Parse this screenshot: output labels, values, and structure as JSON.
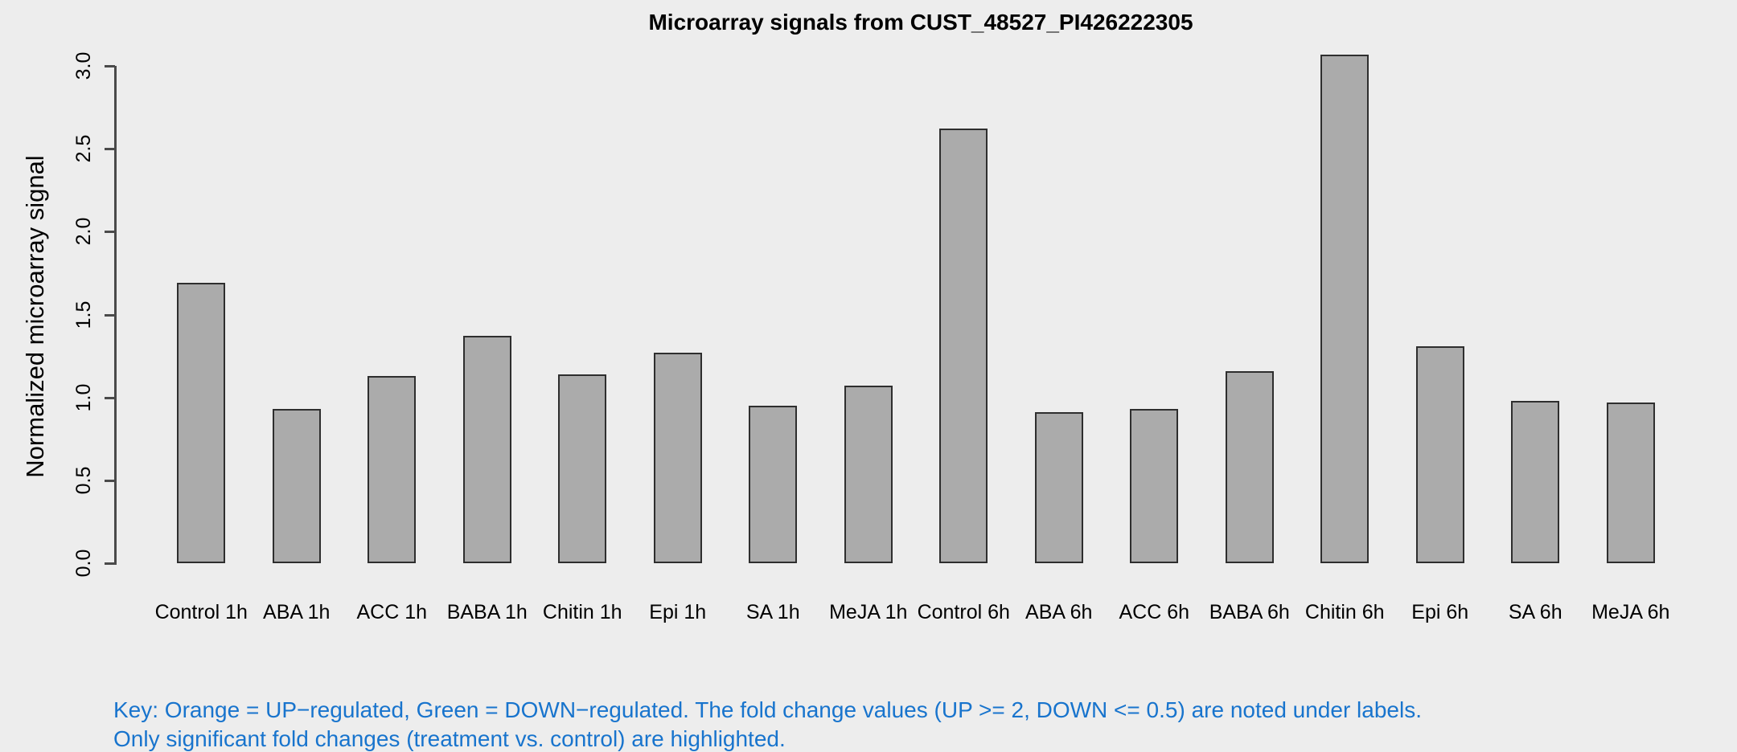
{
  "chart_data": {
    "type": "bar",
    "title": "Microarray signals from CUST_48527_PI426222305",
    "xlabel": "",
    "ylabel": "Normalized microarray signal",
    "ylim": [
      0,
      3.0
    ],
    "yticks": [
      "0.0",
      "0.5",
      "1.0",
      "1.5",
      "2.0",
      "2.5",
      "3.0"
    ],
    "categories": [
      "Control 1h",
      "ABA 1h",
      "ACC 1h",
      "BABA 1h",
      "Chitin 1h",
      "Epi 1h",
      "SA 1h",
      "MeJA 1h",
      "Control 6h",
      "ABA 6h",
      "ACC 6h",
      "BABA 6h",
      "Chitin 6h",
      "Epi 6h",
      "SA 6h",
      "MeJA 6h"
    ],
    "values": [
      1.69,
      0.93,
      1.13,
      1.37,
      1.14,
      1.27,
      0.95,
      1.07,
      2.62,
      0.91,
      0.93,
      1.16,
      3.07,
      1.31,
      0.98,
      0.97
    ],
    "grid": false,
    "legend": false,
    "bar_fill": "#ABABAB",
    "bar_border": "#2e2e2e",
    "axis_color": "#4a4a4a"
  },
  "key": {
    "line1": "Key: Orange = UP−regulated, Green = DOWN−regulated. The fold change values (UP >= 2, DOWN <= 0.5) are noted under labels.",
    "line2": "Only significant fold changes (treatment vs. control) are highlighted.",
    "color": "#1874CD"
  },
  "colors": {
    "background": "#EDEDED",
    "text": "#000000"
  }
}
